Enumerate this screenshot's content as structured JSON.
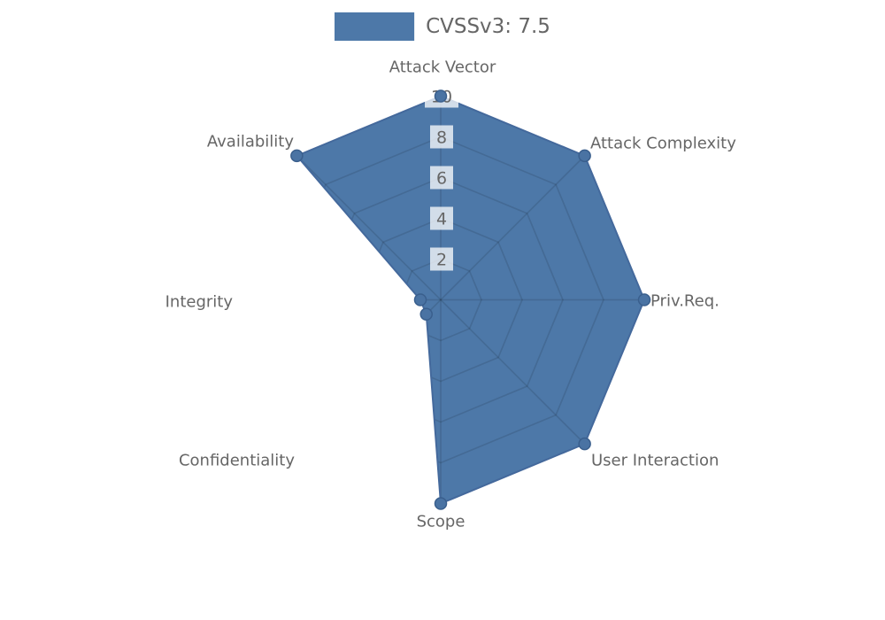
{
  "legend": {
    "label": "CVSSv3: 7.5"
  },
  "chart_data": {
    "type": "radar",
    "title": "CVSSv3: 7.5",
    "axes": [
      "Attack Vector",
      "Attack Complexity",
      "Priv.Req.",
      "User Interaction",
      "Scope",
      "Confidentiality",
      "Integrity",
      "Availability"
    ],
    "series": [
      {
        "name": "CVSSv3: 7.5",
        "values": [
          10,
          10,
          10,
          10,
          10,
          1,
          1,
          10
        ]
      }
    ],
    "rmin": 0,
    "rmax": 10,
    "ticks": [
      2,
      4,
      6,
      8,
      10
    ],
    "legend_position": "top",
    "grid": "octagonal-rings-and-spokes-visible-only-inside-fill",
    "colors": {
      "fill": "#4d78a8",
      "border": "#44699c",
      "point_fill": "#4a73a3",
      "point_stroke": "#3a5f8d",
      "grid_line": "rgba(0,0,0,0.11)",
      "tick_text": "#666666",
      "tick_backdrop": "rgba(255,255,255,0.75)",
      "axis_label_text": "#666666",
      "legend_text": "#666666"
    }
  }
}
